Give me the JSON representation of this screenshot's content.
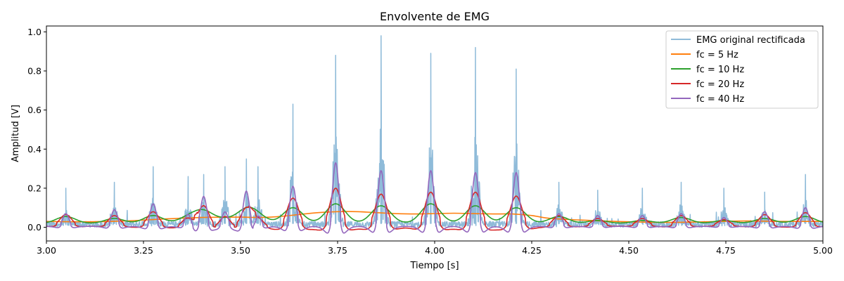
{
  "chart_data": {
    "type": "line",
    "title": "Envolvente de EMG",
    "xlabel": "Tiempo [s]",
    "ylabel": "Amplitud [V]",
    "xlim": [
      3.0,
      5.0
    ],
    "ylim": [
      -0.07,
      1.03
    ],
    "xticks": [
      3.0,
      3.25,
      3.5,
      3.75,
      4.0,
      4.25,
      4.5,
      4.75,
      5.0
    ],
    "xtick_labels": [
      "3.00",
      "3.25",
      "3.50",
      "3.75",
      "4.00",
      "4.25",
      "4.50",
      "4.75",
      "5.00"
    ],
    "yticks": [
      0.0,
      0.2,
      0.4,
      0.6,
      0.8,
      1.0
    ],
    "ytick_labels": [
      "0.0",
      "0.2",
      "0.4",
      "0.6",
      "0.8",
      "1.0"
    ],
    "grid": false,
    "legend_position": "top-right",
    "burst_times": [
      3.05,
      3.175,
      3.275,
      3.365,
      3.405,
      3.46,
      3.515,
      3.545,
      3.635,
      3.745,
      3.862,
      3.99,
      4.105,
      4.21,
      4.32,
      4.42,
      4.535,
      4.635,
      4.745,
      4.85,
      4.955
    ],
    "burst_peaks": [
      0.2,
      0.23,
      0.31,
      0.26,
      0.27,
      0.31,
      0.35,
      0.31,
      0.63,
      0.88,
      0.98,
      0.89,
      0.92,
      0.81,
      0.23,
      0.19,
      0.2,
      0.23,
      0.2,
      0.18,
      0.27
    ],
    "series": [
      {
        "name": "EMG original rectificada",
        "color": "#1f77b4",
        "opacity": 0.5,
        "kind": "raw"
      },
      {
        "name": "fc = 5 Hz",
        "color": "#ff7f0e",
        "x": [
          3.0,
          3.1,
          3.2,
          3.3,
          3.4,
          3.5,
          3.55,
          3.6,
          3.65,
          3.7,
          3.75,
          3.8,
          3.85,
          3.9,
          3.95,
          4.0,
          4.05,
          4.1,
          4.15,
          4.2,
          4.25,
          4.3,
          4.4,
          4.5,
          4.6,
          4.7,
          4.8,
          4.9,
          5.0
        ],
        "values": [
          0.03,
          0.028,
          0.032,
          0.042,
          0.05,
          0.052,
          0.05,
          0.055,
          0.065,
          0.075,
          0.08,
          0.08,
          0.075,
          0.07,
          0.068,
          0.07,
          0.072,
          0.07,
          0.068,
          0.068,
          0.06,
          0.045,
          0.035,
          0.028,
          0.025,
          0.028,
          0.032,
          0.03,
          0.03
        ]
      },
      {
        "name": "fc = 10 Hz",
        "color": "#2ca02c",
        "peaks": [
          0.055,
          0.045,
          0.06,
          0.05,
          0.08,
          0.04,
          0.085,
          0.05,
          0.1,
          0.12,
          0.11,
          0.12,
          0.11,
          0.1,
          0.055,
          0.035,
          0.035,
          0.05,
          0.035,
          0.045,
          0.055
        ],
        "baseline": 0.02,
        "width": 0.035
      },
      {
        "name": "fc = 20 Hz",
        "color": "#d62728",
        "peaks": [
          0.065,
          0.06,
          0.08,
          0.06,
          0.12,
          0.07,
          0.11,
          0.06,
          0.15,
          0.2,
          0.17,
          0.18,
          0.18,
          0.16,
          0.06,
          0.045,
          0.045,
          0.06,
          0.04,
          0.065,
          0.075
        ],
        "baseline": 0.01,
        "width": 0.02
      },
      {
        "name": "fc = 40 Hz",
        "color": "#9467bd",
        "peaks": [
          0.07,
          0.09,
          0.12,
          0.07,
          0.16,
          0.08,
          0.19,
          0.07,
          0.21,
          0.33,
          0.29,
          0.29,
          0.28,
          0.28,
          0.07,
          0.06,
          0.06,
          0.07,
          0.05,
          0.08,
          0.1
        ],
        "baseline": 0.005,
        "width": 0.011
      }
    ]
  }
}
